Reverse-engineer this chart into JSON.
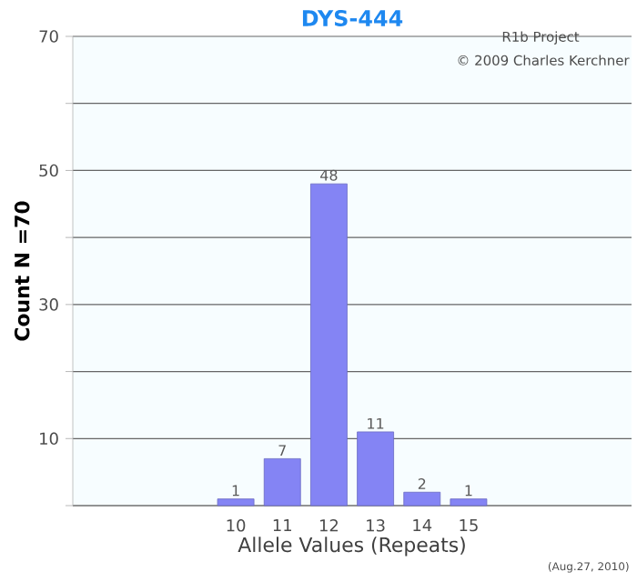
{
  "chart_data": {
    "type": "bar",
    "title": "DYS-444",
    "xlabel": "Allele Values (Repeats)",
    "ylabel": "Count N =70",
    "annotations": [
      "R1b Project",
      "© 2009 Charles Kerchner",
      "(Aug.27, 2010)"
    ],
    "categories": [
      null,
      null,
      null,
      "10",
      "11",
      "12",
      "13",
      "14",
      "15",
      null,
      null,
      null
    ],
    "values": [
      null,
      null,
      null,
      1,
      7,
      48,
      11,
      2,
      1,
      null,
      null,
      null
    ],
    "color": "#8484f4",
    "data_labels": true,
    "grid": "y",
    "ylim": [
      0,
      70
    ],
    "yticks": [
      {
        "value": 0,
        "label": null
      },
      10,
      {
        "value": 20,
        "label": null
      },
      30,
      {
        "value": 40,
        "label": null
      },
      50,
      {
        "value": 60,
        "label": null
      },
      70
    ]
  }
}
